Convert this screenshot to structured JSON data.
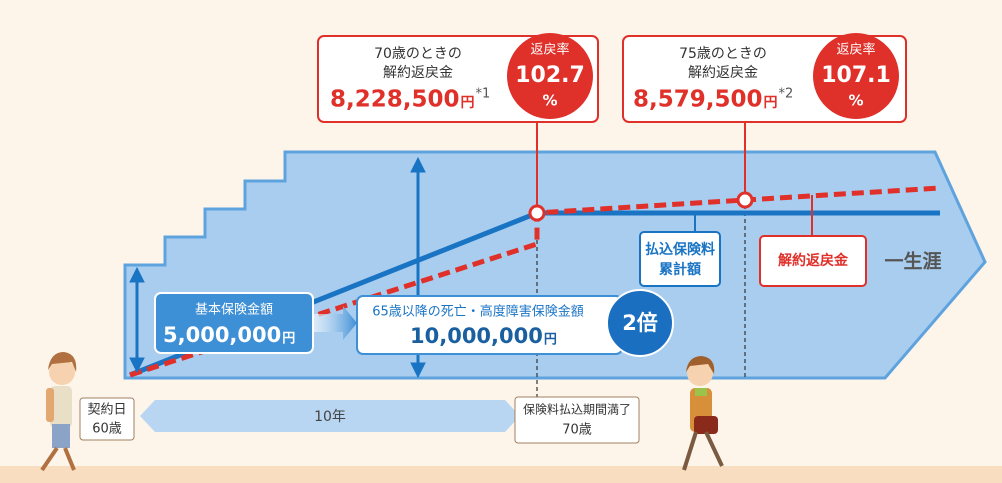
{
  "callouts": [
    {
      "heading": "70歳のときの",
      "label": "解約返戻金",
      "amount": "8,228,500",
      "unit": "円",
      "note": "*1",
      "rate_label": "返戻率",
      "rate": "102.7",
      "rate_unit": "%"
    },
    {
      "heading": "75歳のときの",
      "label": "解約返戻金",
      "amount": "8,579,500",
      "unit": "円",
      "note": "*2",
      "rate_label": "返戻率",
      "rate": "107.1",
      "rate_unit": "%"
    }
  ],
  "legend": {
    "paid_line1": "払込保険料",
    "paid_line2": "累計額",
    "refund": "解約返戻金",
    "lifetime": "一生涯"
  },
  "basic": {
    "label": "基本保険金額",
    "amount": "5,000,000",
    "unit": "円"
  },
  "after65": {
    "label": "65歳以降の死亡・高度障害保険金額",
    "amount": "10,000,000",
    "unit": "円",
    "multiplier": "2倍"
  },
  "timeline": {
    "start_line1": "契約日",
    "start_line2": "60歳",
    "period": "10年",
    "end_line1": "保険料払込期間満了",
    "end_line2": "70歳"
  }
}
